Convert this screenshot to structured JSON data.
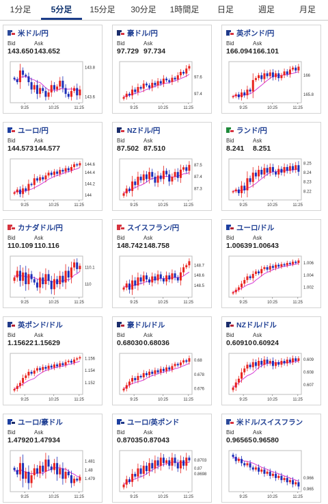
{
  "tabs": [
    "1分足",
    "5分足",
    "15分足",
    "30分足",
    "1時間足",
    "日足",
    "週足",
    "月足"
  ],
  "active_tab": 1,
  "bid_label": "Bid",
  "ask_label": "Ask",
  "cards": [
    {
      "pair": "米ドル/円",
      "flag": [
        "#2c4a9a",
        "#d6333f"
      ],
      "bid": "143.650",
      "ask": "143.652",
      "ticks": [
        "143.8",
        "143.6"
      ],
      "times": [
        "9:25",
        "10:25",
        "11:25"
      ],
      "close": [
        143.72,
        143.7,
        143.78,
        143.75,
        143.74,
        143.7,
        143.65,
        143.68,
        143.62,
        143.66,
        143.64,
        143.6,
        143.63,
        143.68,
        143.65,
        143.67,
        143.71,
        143.66,
        143.62,
        143.6,
        143.64,
        143.66,
        143.61,
        143.65
      ]
    },
    {
      "pair": "豪ドル/円",
      "flag": [
        "#1b2d6b",
        "#d6333f"
      ],
      "bid": "97.729",
      "ask": "97.734",
      "ticks": [
        "97.6",
        "97.4"
      ],
      "times": [
        "9:25",
        "10:25",
        "11:25"
      ],
      "close": [
        97.36,
        97.4,
        97.38,
        97.45,
        97.42,
        97.48,
        97.46,
        97.52,
        97.5,
        97.47,
        97.53,
        97.5,
        97.55,
        97.52,
        97.58,
        97.56,
        97.54,
        97.59,
        97.57,
        97.62,
        97.66,
        97.64,
        97.7,
        97.73
      ]
    },
    {
      "pair": "英ポンド/円",
      "flag": [
        "#203a8a",
        "#d6333f"
      ],
      "bid": "166.094",
      "ask": "166.101",
      "ticks": [
        "166",
        "165.8"
      ],
      "times": [
        "9:25",
        "10:25",
        "11:25"
      ],
      "close": [
        165.78,
        165.8,
        165.77,
        165.82,
        165.79,
        165.85,
        165.83,
        165.95,
        165.97,
        166.0,
        165.96,
        166.02,
        165.99,
        166.03,
        165.98,
        166.02,
        165.97,
        166.0,
        166.04,
        166.01,
        166.06,
        166.08,
        166.05,
        166.09
      ]
    },
    {
      "pair": "ユーロ/円",
      "flag": [
        "#1d3fa0",
        "#d6333f"
      ],
      "bid": "144.573",
      "ask": "144.577",
      "ticks": [
        "144.6",
        "144.4",
        "144.2",
        "144"
      ],
      "times": [
        "9:25",
        "10:25",
        "11:25"
      ],
      "close": [
        144.05,
        144.1,
        144.02,
        144.12,
        144.08,
        144.2,
        144.18,
        144.3,
        144.26,
        144.32,
        144.28,
        144.35,
        144.4,
        144.36,
        144.42,
        144.38,
        144.45,
        144.42,
        144.48,
        144.44,
        144.5,
        144.55,
        144.53,
        144.57
      ]
    },
    {
      "pair": "NZドル/円",
      "flag": [
        "#1b2d6b",
        "#d6333f"
      ],
      "bid": "87.502",
      "ask": "87.510",
      "ticks": [
        "87.5",
        "87.4",
        "87.3"
      ],
      "times": [
        "9:25",
        "10:25",
        "11:25"
      ],
      "close": [
        87.26,
        87.3,
        87.28,
        87.36,
        87.33,
        87.4,
        87.37,
        87.42,
        87.38,
        87.44,
        87.4,
        87.35,
        87.41,
        87.38,
        87.45,
        87.42,
        87.36,
        87.4,
        87.44,
        87.39,
        87.46,
        87.48,
        87.45,
        87.5
      ]
    },
    {
      "pair": "ランド/円",
      "flag": [
        "#1f8a3a",
        "#d6333f"
      ],
      "bid": "8.241",
      "ask": "8.251",
      "ticks": [
        "8.25",
        "8.24",
        "8.23",
        "8.22"
      ],
      "times": [
        "9:25",
        "10:25",
        "11:25"
      ],
      "close": [
        8.22,
        8.222,
        8.218,
        8.226,
        8.221,
        8.234,
        8.23,
        8.24,
        8.236,
        8.243,
        8.238,
        8.245,
        8.24,
        8.246,
        8.241,
        8.238,
        8.244,
        8.24,
        8.246,
        8.242,
        8.247,
        8.243,
        8.248,
        8.241
      ]
    },
    {
      "pair": "カナダドル/円",
      "flag": [
        "#d6333f",
        "#d6333f"
      ],
      "bid": "110.109",
      "ask": "110.116",
      "ticks": [
        "110.1",
        "110"
      ],
      "times": [
        "9:25",
        "10:25",
        "11:25"
      ],
      "close": [
        110.04,
        110.08,
        110.02,
        110.07,
        110.0,
        110.06,
        110.03,
        110.01,
        109.98,
        110.04,
        110.0,
        110.06,
        110.02,
        109.97,
        110.03,
        110.0,
        110.05,
        110.01,
        110.08,
        110.04,
        110.1,
        110.13,
        110.09,
        110.11
      ]
    },
    {
      "pair": "スイスフラン/円",
      "flag": [
        "#d6333f",
        "#d6333f"
      ],
      "bid": "148.742",
      "ask": "148.758",
      "ticks": [
        "148.7",
        "148.6",
        "148.5"
      ],
      "times": [
        "9:25",
        "10:25",
        "11:25"
      ],
      "close": [
        148.48,
        148.52,
        148.46,
        148.55,
        148.5,
        148.58,
        148.54,
        148.6,
        148.56,
        148.53,
        148.59,
        148.55,
        148.61,
        148.57,
        148.54,
        148.6,
        148.56,
        148.62,
        148.58,
        148.55,
        148.63,
        148.68,
        148.7,
        148.74
      ]
    },
    {
      "pair": "ユーロ/ドル",
      "flag": [
        "#1d3fa0",
        "#b22234"
      ],
      "bid": "1.00639",
      "ask": "1.00643",
      "ticks": [
        "1.006",
        "1.004",
        "1.002"
      ],
      "times": [
        "9:25",
        "10:25",
        "11:25"
      ],
      "close": [
        1.0012,
        1.0016,
        1.002,
        1.0026,
        1.0032,
        1.0038,
        1.0035,
        1.0042,
        1.0046,
        1.0043,
        1.005,
        1.0053,
        1.0049,
        1.0055,
        1.0052,
        1.0057,
        1.0054,
        1.0058,
        1.0056,
        1.006,
        1.0058,
        1.0062,
        1.006,
        1.0064
      ]
    },
    {
      "pair": "英ポンド/ドル",
      "flag": [
        "#203a8a",
        "#b22234"
      ],
      "bid": "1.15622",
      "ask": "1.15629",
      "ticks": [
        "1.156",
        "1.154",
        "1.152"
      ],
      "times": [
        "9:25",
        "10:25",
        "11:25"
      ],
      "close": [
        1.151,
        1.1515,
        1.152,
        1.1528,
        1.1532,
        1.1538,
        1.1535,
        1.154,
        1.1544,
        1.1541,
        1.1546,
        1.1543,
        1.1548,
        1.1545,
        1.155,
        1.1547,
        1.1552,
        1.1549,
        1.1554,
        1.1556,
        1.1553,
        1.1558,
        1.156,
        1.1562
      ]
    },
    {
      "pair": "豪ドル/ドル",
      "flag": [
        "#1b2d6b",
        "#b22234"
      ],
      "bid": "0.68030",
      "ask": "0.68036",
      "ticks": [
        "0.68",
        "0.678",
        "0.676"
      ],
      "times": [
        "9:25",
        "10:25",
        "11:25"
      ],
      "close": [
        0.676,
        0.6765,
        0.677,
        0.6775,
        0.6772,
        0.6778,
        0.6776,
        0.6782,
        0.6779,
        0.6784,
        0.6781,
        0.6786,
        0.6783,
        0.6788,
        0.6785,
        0.679,
        0.6787,
        0.6792,
        0.6795,
        0.6793,
        0.6797,
        0.68,
        0.6798,
        0.6803
      ]
    },
    {
      "pair": "NZドル/ドル",
      "flag": [
        "#1b2d6b",
        "#b22234"
      ],
      "bid": "0.60910",
      "ask": "0.60924",
      "ticks": [
        "0.609",
        "0.608",
        "0.607"
      ],
      "times": [
        "9:25",
        "10:25",
        "11:25"
      ],
      "close": [
        0.6068,
        0.6072,
        0.6075,
        0.608,
        0.6083,
        0.6086,
        0.6084,
        0.6088,
        0.6085,
        0.6089,
        0.6086,
        0.609,
        0.6087,
        0.6089,
        0.6085,
        0.6088,
        0.6086,
        0.6089,
        0.6087,
        0.609,
        0.6088,
        0.6091,
        0.6089,
        0.6091
      ]
    },
    {
      "pair": "ユーロ/豪ドル",
      "flag": [
        "#1d3fa0",
        "#1b2d6b"
      ],
      "bid": "1.47920",
      "ask": "1.47934",
      "ticks": [
        "1.481",
        "1.48",
        "1.479"
      ],
      "times": [
        "9:25",
        "10:25",
        "11:25"
      ],
      "close": [
        1.48,
        1.4795,
        1.4808,
        1.479,
        1.4798,
        1.4785,
        1.4794,
        1.4802,
        1.4796,
        1.4805,
        1.4798,
        1.4812,
        1.4804,
        1.48,
        1.4808,
        1.4795,
        1.4802,
        1.479,
        1.4798,
        1.4794,
        1.4785,
        1.479,
        1.4788,
        1.4792
      ]
    },
    {
      "pair": "ユーロ/英ポンド",
      "flag": [
        "#1d3fa0",
        "#203a8a"
      ],
      "bid": "0.87035",
      "ask": "0.87043",
      "ticks": [
        "0.8703",
        "0.87",
        "0.8698"
      ],
      "times": [
        "9:25",
        "10:25",
        "11:25"
      ],
      "close": [
        0.8694,
        0.8696,
        0.8695,
        0.8698,
        0.8697,
        0.87,
        0.8698,
        0.8701,
        0.8699,
        0.8702,
        0.87,
        0.8703,
        0.8701,
        0.8704,
        0.8702,
        0.8703,
        0.8701,
        0.8704,
        0.8702,
        0.87,
        0.8703,
        0.8701,
        0.8704,
        0.8703
      ]
    },
    {
      "pair": "米ドル/スイスフラン",
      "flag": [
        "#2c4a9a",
        "#d6333f"
      ],
      "bid": "0.96565",
      "ask": "0.96580",
      "ticks": [
        "0.966",
        "0.965"
      ],
      "times": [
        "9:25",
        "10:25",
        "11:25"
      ],
      "close": [
        0.967,
        0.9668,
        0.9669,
        0.9667,
        0.9666,
        0.9667,
        0.9665,
        0.9664,
        0.9665,
        0.9663,
        0.9664,
        0.9662,
        0.9663,
        0.9661,
        0.9662,
        0.966,
        0.9661,
        0.9659,
        0.966,
        0.9658,
        0.9659,
        0.9657,
        0.9658,
        0.9656
      ]
    }
  ]
}
